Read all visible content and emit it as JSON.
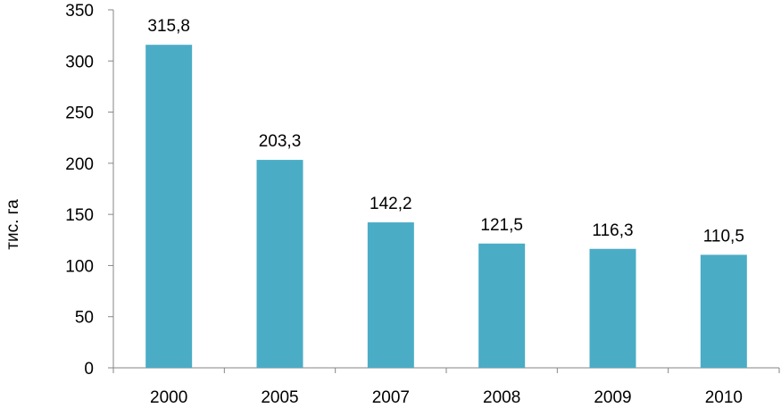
{
  "chart_data": {
    "type": "bar",
    "title": "",
    "xlabel": "",
    "ylabel": "тис. га",
    "categories": [
      "2000",
      "2005",
      "2007",
      "2008",
      "2009",
      "2010"
    ],
    "values": [
      315.8,
      203.3,
      142.2,
      121.5,
      116.3,
      110.5
    ],
    "value_labels": [
      "315,8",
      "203,3",
      "142,2",
      "121,5",
      "116,3",
      "110,5"
    ],
    "yticks": [
      "0",
      "50",
      "100",
      "150",
      "200",
      "250",
      "300",
      "350"
    ],
    "ylim": [
      0,
      350
    ],
    "grid": false,
    "legend": "none",
    "bar_color": "#4BACC6"
  }
}
